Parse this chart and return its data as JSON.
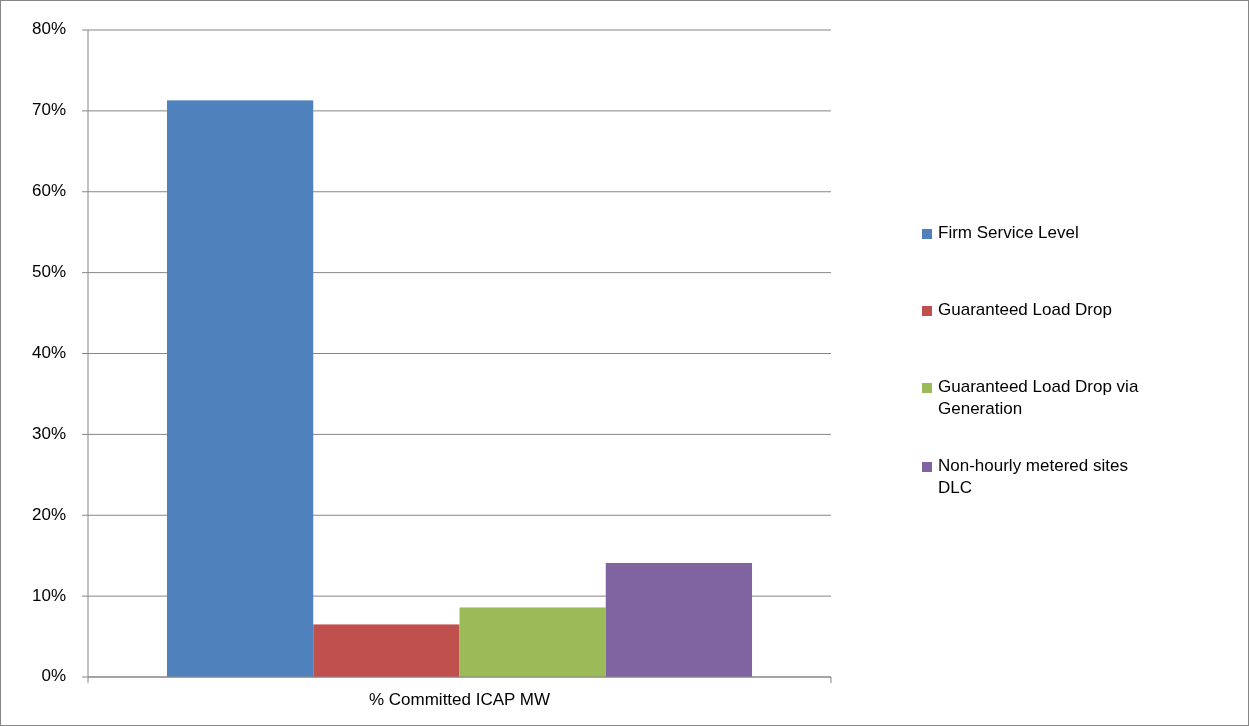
{
  "chart_data": {
    "type": "bar",
    "categories": [
      "% Committed ICAP MW"
    ],
    "series": [
      {
        "name": "Firm Service Level",
        "color": "#4f81bd",
        "values": [
          71.3
        ]
      },
      {
        "name": "Guaranteed Load Drop",
        "color": "#c0504d",
        "values": [
          6.5
        ]
      },
      {
        "name": "Guaranteed Load Drop via Generation",
        "color": "#9bbb59",
        "values": [
          8.6
        ]
      },
      {
        "name": "Non-hourly metered sites DLC",
        "color": "#8064a2",
        "values": [
          14.1
        ]
      }
    ],
    "ylim": [
      0,
      80
    ],
    "yticks": [
      {
        "value": 0,
        "label": "0%"
      },
      {
        "value": 10,
        "label": "10%"
      },
      {
        "value": 20,
        "label": "20%"
      },
      {
        "value": 30,
        "label": "30%"
      },
      {
        "value": 40,
        "label": "40%"
      },
      {
        "value": 50,
        "label": "50%"
      },
      {
        "value": 60,
        "label": "60%"
      },
      {
        "value": 70,
        "label": "70%"
      },
      {
        "value": 80,
        "label": "80%"
      }
    ],
    "grid": "y",
    "legend": "right"
  }
}
